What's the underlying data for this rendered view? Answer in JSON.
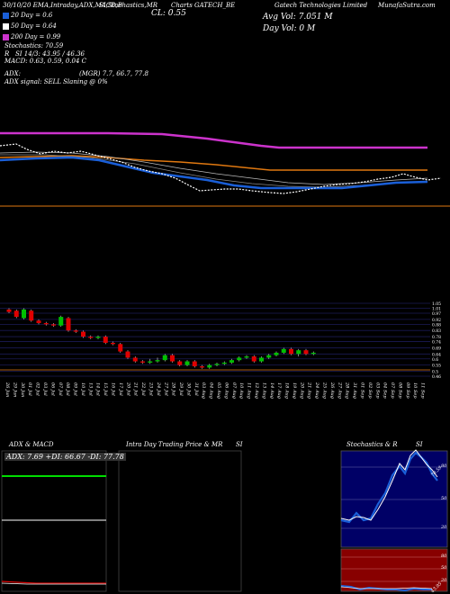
{
  "header": {
    "line1_left": "30/10/20 EMA,Intraday,ADX,MACD,B",
    "line1_mid": "SI,Stochastics,MR",
    "line1_symbol": "Charts GATECH_BE",
    "line1_right1": "Gatech Technologies Limited",
    "line1_right2": "MunafaSutra.com",
    "cl": "CL: 0.55",
    "avg_vol": "Avg Vol: 7.051 M",
    "day_vol": "Day Vol: 0   M",
    "dma20": "20 Day = 0.6",
    "dma50": "50 Day = 0.64",
    "dma200": "200 Day = 0.99",
    "stoch": "Stochastics: 70.59",
    "rsi": "SI 14/3: 43.95 / 46.36",
    "rsi_r": "R",
    "macd": "MACD: 0.63, 0.59, 0.04   C",
    "adx": "ADX:",
    "adx_vals": "(MGR) 7.7, 66.7,  77.8",
    "adx_signal": "ADX  signal: SELL  Slaning @ 0%"
  },
  "colors": {
    "dma20": "#1a5fd8",
    "dma50": "#ffffff",
    "dma200": "#cc33cc",
    "orange": "#e07810",
    "up": "#00c000",
    "down": "#e00000"
  },
  "candle_axis": [
    "1.05",
    "1.01",
    "0.97",
    "0.92",
    "0.88",
    "0.83",
    "0.78",
    "0.74",
    "0.69",
    "0.64",
    "0.6",
    "0.55",
    "0.5",
    "0.46"
  ],
  "dates": [
    "26 Jun",
    "29 Jun",
    "30 Jun",
    "01 Jul",
    "02 Jul",
    "03 Jul",
    "06 Jul",
    "07 Jul",
    "08 Jul",
    "09 Jul",
    "10 Jul",
    "13 Jul",
    "14 Jul",
    "15 Jul",
    "16 Jul",
    "17 Jul",
    "20 Jul",
    "21 Jul",
    "22 Jul",
    "23 Jul",
    "24 Jul",
    "27 Jul",
    "28 Jul",
    "29 Jul",
    "30 Jul",
    "31 Jul",
    "03 Aug",
    "04 Aug",
    "05 Aug",
    "06 Aug",
    "07 Aug",
    "10 Aug",
    "11 Aug",
    "12 Aug",
    "13 Aug",
    "14 Aug",
    "17 Aug",
    "18 Aug",
    "19 Aug",
    "20 Aug",
    "21 Aug",
    "24 Aug",
    "25 Aug",
    "26 Aug",
    "27 Aug",
    "28 Aug",
    "31 Aug",
    "01 Sep",
    "02 Sep",
    "03 Sep",
    "04 Sep",
    "07 Sep",
    "08 Sep",
    "09 Sep",
    "10 Sep",
    "11 Sep"
  ],
  "panels": {
    "adx_title": "ADX  & MACD",
    "adx_vals": "ADX: 7.69  +DI: 66.67  -DI: 77.78",
    "intraday_title": "Intra  Day Trading Price  & MR",
    "intraday_si": "SI",
    "stoch_title": "Stochastics & R",
    "stoch_si": "SI",
    "stoch_val": "70.59",
    "rsi_val": "43.95",
    "stoch_axis": [
      "80",
      "50",
      "20"
    ],
    "rsi_axis": [
      "80",
      "50",
      "20"
    ]
  },
  "chart_data": {
    "type": "candlestick",
    "price_levels": [
      1.05,
      1.01,
      0.97,
      0.92,
      0.88,
      0.83,
      0.78,
      0.74,
      0.69,
      0.64,
      0.6,
      0.55,
      0.5,
      0.46
    ],
    "candles": [
      {
        "o": 1.0,
        "c": 0.98,
        "h": 1.01,
        "l": 0.97
      },
      {
        "o": 0.99,
        "c": 0.94,
        "h": 1.0,
        "l": 0.93
      },
      {
        "o": 0.93,
        "c": 1.0,
        "h": 1.01,
        "l": 0.92
      },
      {
        "o": 0.99,
        "c": 0.91,
        "h": 1.0,
        "l": 0.9
      },
      {
        "o": 0.91,
        "c": 0.89,
        "h": 0.92,
        "l": 0.88
      },
      {
        "o": 0.89,
        "c": 0.88,
        "h": 0.9,
        "l": 0.87
      },
      {
        "o": 0.88,
        "c": 0.87,
        "h": 0.89,
        "l": 0.86
      },
      {
        "o": 0.87,
        "c": 0.94,
        "h": 0.95,
        "l": 0.86
      },
      {
        "o": 0.93,
        "c": 0.83,
        "h": 0.94,
        "l": 0.82
      },
      {
        "o": 0.83,
        "c": 0.82,
        "h": 0.84,
        "l": 0.81
      },
      {
        "o": 0.82,
        "c": 0.78,
        "h": 0.83,
        "l": 0.77
      },
      {
        "o": 0.78,
        "c": 0.77,
        "h": 0.79,
        "l": 0.76
      },
      {
        "o": 0.77,
        "c": 0.78,
        "h": 0.79,
        "l": 0.76
      },
      {
        "o": 0.78,
        "c": 0.73,
        "h": 0.79,
        "l": 0.72
      },
      {
        "o": 0.73,
        "c": 0.72,
        "h": 0.74,
        "l": 0.71
      },
      {
        "o": 0.72,
        "c": 0.66,
        "h": 0.73,
        "l": 0.65
      },
      {
        "o": 0.66,
        "c": 0.61,
        "h": 0.67,
        "l": 0.6
      },
      {
        "o": 0.61,
        "c": 0.58,
        "h": 0.62,
        "l": 0.57
      },
      {
        "o": 0.58,
        "c": 0.57,
        "h": 0.59,
        "l": 0.56
      },
      {
        "o": 0.57,
        "c": 0.58,
        "h": 0.6,
        "l": 0.56
      },
      {
        "o": 0.58,
        "c": 0.59,
        "h": 0.61,
        "l": 0.57
      },
      {
        "o": 0.59,
        "c": 0.63,
        "h": 0.64,
        "l": 0.58
      },
      {
        "o": 0.63,
        "c": 0.58,
        "h": 0.64,
        "l": 0.57
      },
      {
        "o": 0.58,
        "c": 0.55,
        "h": 0.59,
        "l": 0.54
      },
      {
        "o": 0.55,
        "c": 0.58,
        "h": 0.59,
        "l": 0.54
      },
      {
        "o": 0.58,
        "c": 0.54,
        "h": 0.59,
        "l": 0.53
      },
      {
        "o": 0.54,
        "c": 0.53,
        "h": 0.55,
        "l": 0.52
      },
      {
        "o": 0.53,
        "c": 0.55,
        "h": 0.56,
        "l": 0.52
      },
      {
        "o": 0.55,
        "c": 0.56,
        "h": 0.57,
        "l": 0.54
      },
      {
        "o": 0.56,
        "c": 0.57,
        "h": 0.58,
        "l": 0.55
      },
      {
        "o": 0.57,
        "c": 0.59,
        "h": 0.6,
        "l": 0.56
      },
      {
        "o": 0.59,
        "c": 0.61,
        "h": 0.62,
        "l": 0.58
      },
      {
        "o": 0.61,
        "c": 0.62,
        "h": 0.63,
        "l": 0.6
      },
      {
        "o": 0.62,
        "c": 0.58,
        "h": 0.63,
        "l": 0.57
      },
      {
        "o": 0.58,
        "c": 0.61,
        "h": 0.62,
        "l": 0.57
      },
      {
        "o": 0.61,
        "c": 0.63,
        "h": 0.64,
        "l": 0.6
      },
      {
        "o": 0.63,
        "c": 0.65,
        "h": 0.66,
        "l": 0.62
      },
      {
        "o": 0.65,
        "c": 0.68,
        "h": 0.69,
        "l": 0.64
      },
      {
        "o": 0.68,
        "c": 0.64,
        "h": 0.69,
        "l": 0.63
      },
      {
        "o": 0.64,
        "c": 0.67,
        "h": 0.68,
        "l": 0.62
      },
      {
        "o": 0.67,
        "c": 0.64,
        "h": 0.68,
        "l": 0.63
      },
      {
        "o": 0.64,
        "c": 0.65,
        "h": 0.66,
        "l": 0.63
      }
    ]
  }
}
